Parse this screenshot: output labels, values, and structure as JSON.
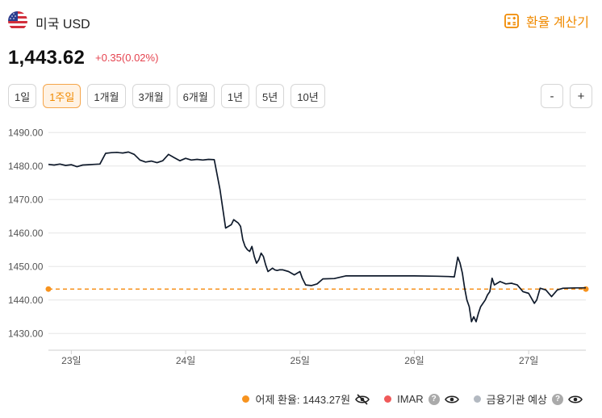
{
  "header": {
    "currency_name": "미국 USD",
    "calc_label": "환율 계산기",
    "flag_icon": "us-flag-icon",
    "calc_icon": "calculator-icon"
  },
  "quote": {
    "rate": "1,443.62",
    "change": "+0.35(0.02%)",
    "change_color": "#e5434f"
  },
  "period_tabs": [
    "1일",
    "1주일",
    "1개월",
    "3개월",
    "6개월",
    "1년",
    "5년",
    "10년"
  ],
  "active_tab": "1주일",
  "zoom": {
    "minus": "-",
    "plus": "+"
  },
  "accent_color": "#f08a00",
  "chart_data": {
    "type": "line",
    "ylim": [
      1425,
      1492
    ],
    "y_ticks": [
      "1490.00",
      "1480.00",
      "1470.00",
      "1460.00",
      "1450.00",
      "1440.00",
      "1430.00"
    ],
    "y_tick_values": [
      1490,
      1480,
      1470,
      1460,
      1450,
      1440,
      1430
    ],
    "x_ticks": [
      "23일",
      "24일",
      "25일",
      "26일",
      "27일"
    ],
    "x_tick_values": [
      0.2,
      1.2,
      2.2,
      3.2,
      4.2
    ],
    "xlim": [
      0,
      4.7
    ],
    "grid": true,
    "reference_line": {
      "name": "어제 환율",
      "value": 1443.27,
      "color": "#f7931e"
    },
    "series": [
      {
        "color": "#0f1a2b",
        "x": [
          0,
          0.05,
          0.1,
          0.15,
          0.2,
          0.25,
          0.3,
          0.35,
          0.4,
          0.45,
          0.5,
          0.55,
          0.6,
          0.62,
          0.65,
          0.7,
          0.75,
          0.8,
          0.85,
          0.9,
          0.95,
          1.0,
          1.05,
          1.1,
          1.15,
          1.2,
          1.25,
          1.3,
          1.35,
          1.4,
          1.45,
          1.5,
          1.55,
          1.6,
          1.62,
          1.64,
          1.66,
          1.68,
          1.7,
          1.72,
          1.74,
          1.76,
          1.78,
          1.8,
          1.82,
          1.84,
          1.86,
          1.88,
          1.9,
          1.92,
          1.94,
          1.96,
          1.98,
          2.0,
          2.02,
          2.05,
          2.1,
          2.15,
          2.2,
          2.22,
          2.25,
          2.3,
          2.35,
          2.4,
          2.5,
          2.6,
          2.8,
          3.0,
          3.2,
          3.4,
          3.5,
          3.55,
          3.58,
          3.6,
          3.62,
          3.64,
          3.66,
          3.68,
          3.7,
          3.72,
          3.74,
          3.76,
          3.78,
          3.8,
          3.82,
          3.84,
          3.86,
          3.88,
          3.9,
          3.95,
          4.0,
          4.05,
          4.1,
          4.15,
          4.2,
          4.25,
          4.27,
          4.3,
          4.35,
          4.4,
          4.45,
          4.5,
          4.6,
          4.7
        ],
        "y": [
          1480.5,
          1480.3,
          1480.6,
          1480.2,
          1480.4,
          1479.8,
          1480.3,
          1480.4,
          1480.5,
          1480.6,
          1483.8,
          1484.0,
          1484.1,
          1484.0,
          1483.9,
          1484.2,
          1483.5,
          1481.8,
          1481.2,
          1481.5,
          1481.0,
          1481.6,
          1483.5,
          1482.5,
          1481.6,
          1482.3,
          1481.8,
          1482.0,
          1481.8,
          1482.0,
          1481.9,
          1473.0,
          1461.5,
          1462.5,
          1464.0,
          1463.5,
          1463.0,
          1462.0,
          1458.0,
          1456.0,
          1455.0,
          1454.5,
          1456.0,
          1453.0,
          1451.0,
          1452.0,
          1454.0,
          1453.0,
          1450.5,
          1448.5,
          1449.0,
          1449.5,
          1449.0,
          1448.8,
          1449.0,
          1449.0,
          1448.5,
          1447.5,
          1448.5,
          1446.5,
          1444.5,
          1444.3,
          1444.8,
          1446.3,
          1446.4,
          1447.2,
          1447.2,
          1447.2,
          1447.2,
          1447.1,
          1447.0,
          1446.9,
          1452.8,
          1451.0,
          1448.0,
          1443.5,
          1440.0,
          1438.0,
          1433.5,
          1435.0,
          1433.5,
          1436.0,
          1438.0,
          1439.0,
          1440.0,
          1441.5,
          1442.5,
          1446.5,
          1444.5,
          1445.5,
          1444.8,
          1445.0,
          1444.5,
          1442.5,
          1442.0,
          1439.0,
          1440.0,
          1443.5,
          1443.0,
          1441.0,
          1443.0,
          1443.5,
          1443.6,
          1443.62
        ]
      }
    ]
  },
  "legend": {
    "yesterday_label": "어제 환율: 1443.27원",
    "imar_label": "IMAR",
    "forecast_label": "금융기관 예상",
    "help_glyph": "?",
    "yesterday_color": "#f7931e",
    "imar_color": "#f05a5a",
    "forecast_color": "#b3b9c1"
  }
}
